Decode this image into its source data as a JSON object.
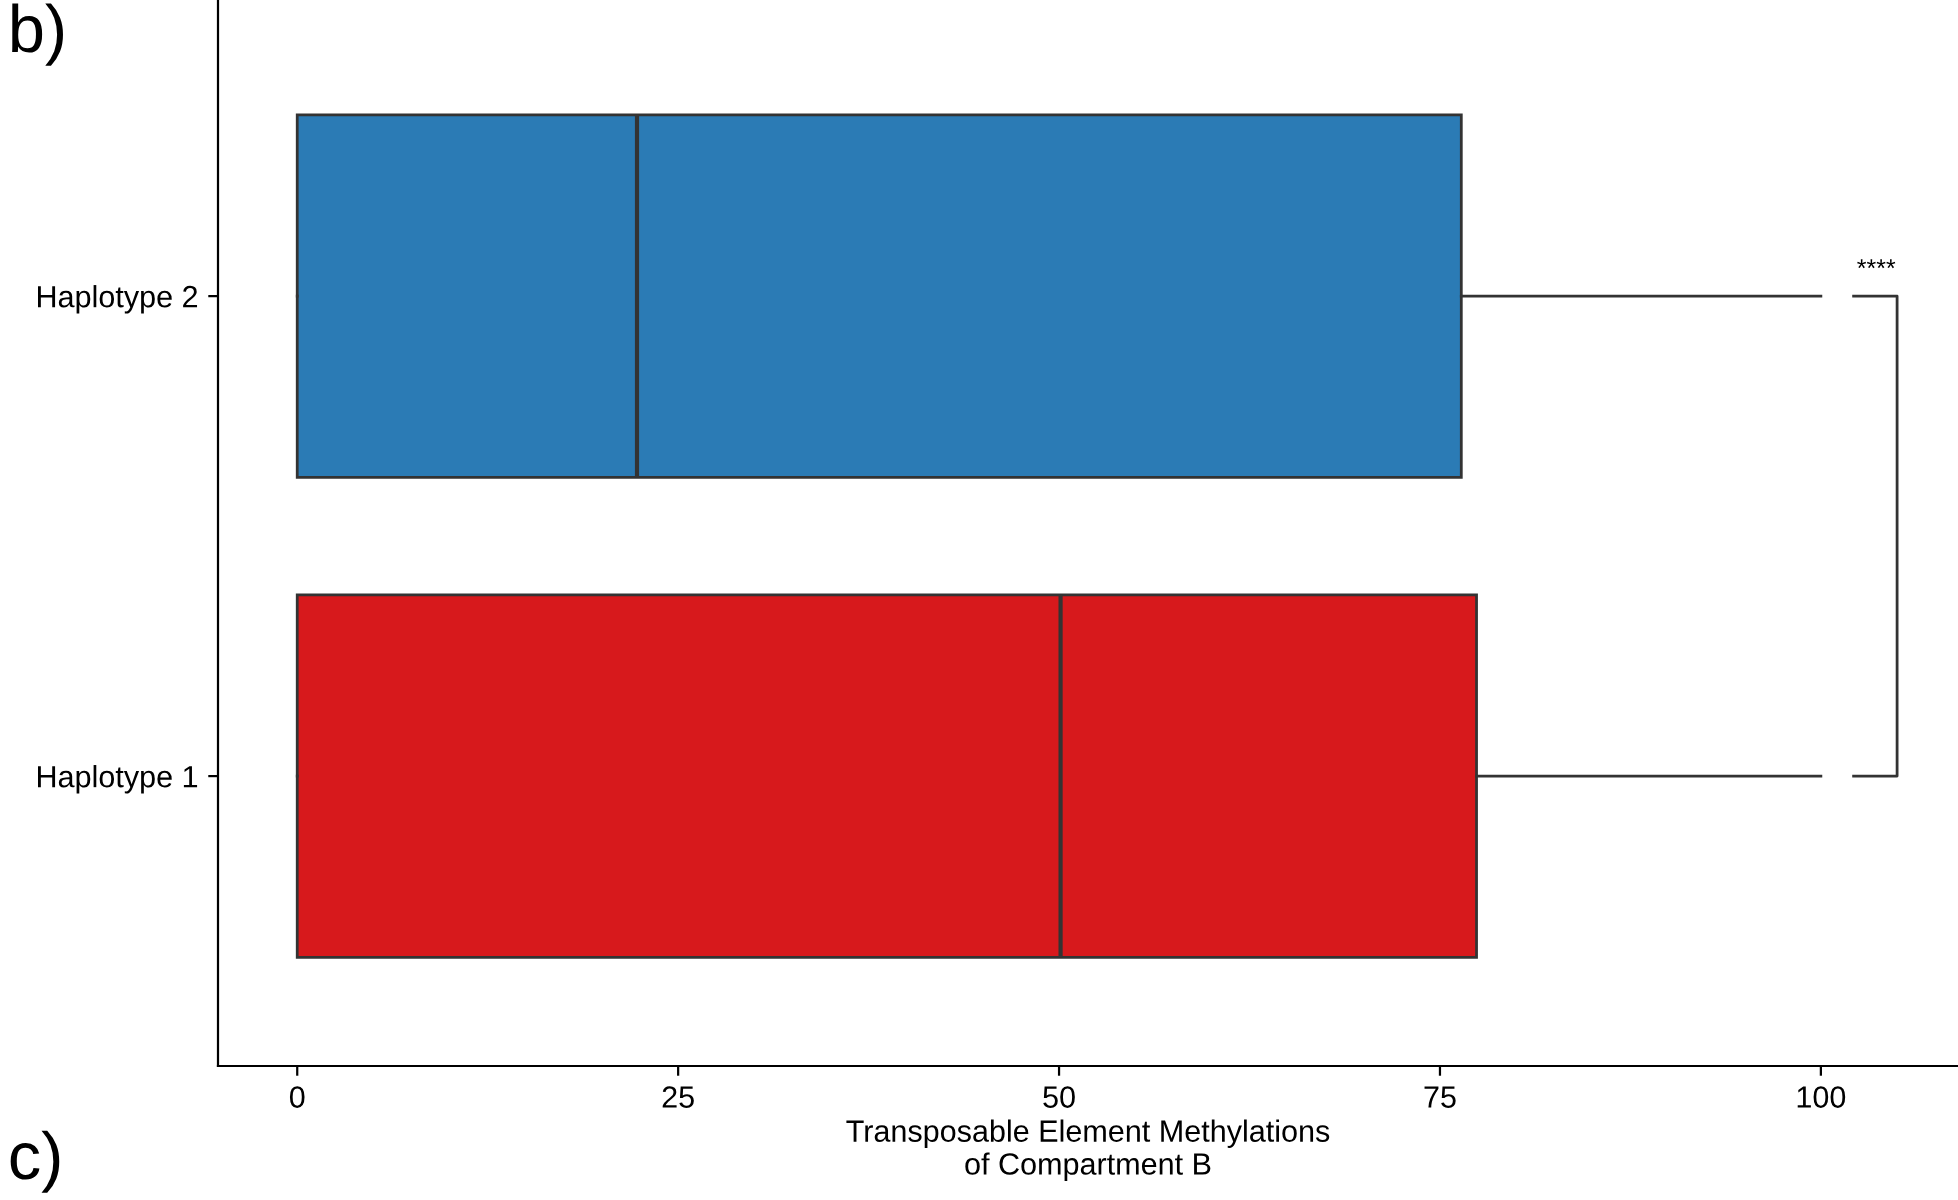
{
  "chart_data": {
    "type": "box",
    "orientation": "horizontal",
    "categories": [
      "Haplotype 2",
      "Haplotype 1"
    ],
    "boxes": [
      {
        "low": 0,
        "q1": 0,
        "median": 22.3,
        "q3": 76.4,
        "high": 100
      },
      {
        "low": 0,
        "q1": 0,
        "median": 50.1,
        "q3": 77.4,
        "high": 100
      }
    ],
    "colors": [
      "#2b7bb5",
      "#d7191c"
    ],
    "xlabel": "Transposable Element Methylations\nof Compartment B",
    "xlim": [
      -5.2,
      109
    ],
    "xticks": [
      0,
      25,
      50,
      75,
      100
    ],
    "annotations": [
      "****",
      "b)",
      "c)"
    ],
    "grid": false,
    "legend": false
  }
}
